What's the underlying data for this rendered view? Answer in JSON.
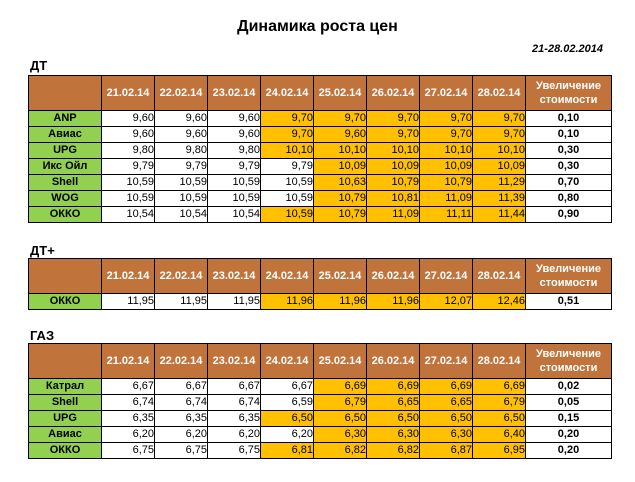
{
  "title": "Динамика роста цен",
  "period": "21-28.02.2014",
  "columns": {
    "dates": [
      "21.02.14",
      "22.02.14",
      "23.02.14",
      "24.02.14",
      "25.02.14",
      "26.02.14",
      "27.02.14",
      "28.02.14"
    ],
    "increase_label": "Увеличение стоимости"
  },
  "highlight_color": "#ffc000",
  "sections": [
    {
      "label": "ДТ",
      "rows": [
        {
          "name": "ANP",
          "values": [
            "9,60",
            "9,60",
            "9,60",
            "9,70",
            "9,70",
            "9,70",
            "9,70",
            "9,70"
          ],
          "highlight": [
            false,
            false,
            false,
            true,
            true,
            true,
            true,
            true
          ],
          "increase": "0,10"
        },
        {
          "name": "Авиас",
          "values": [
            "9,60",
            "9,60",
            "9,60",
            "9,70",
            "9,60",
            "9,70",
            "9,70",
            "9,70"
          ],
          "highlight": [
            false,
            false,
            false,
            true,
            true,
            true,
            true,
            true
          ],
          "increase": "0,10"
        },
        {
          "name": "UPG",
          "values": [
            "9,80",
            "9,80",
            "9,80",
            "10,10",
            "10,10",
            "10,10",
            "10,10",
            "10,10"
          ],
          "highlight": [
            false,
            false,
            false,
            true,
            true,
            true,
            true,
            true
          ],
          "increase": "0,30"
        },
        {
          "name": "Икс Ойл",
          "values": [
            "9,79",
            "9,79",
            "9,79",
            "9,79",
            "10,09",
            "10,09",
            "10,09",
            "10,09"
          ],
          "highlight": [
            false,
            false,
            false,
            false,
            true,
            true,
            true,
            true
          ],
          "increase": "0,30"
        },
        {
          "name": "Shell",
          "values": [
            "10,59",
            "10,59",
            "10,59",
            "10,59",
            "10,63",
            "10,79",
            "10,79",
            "11,29"
          ],
          "highlight": [
            false,
            false,
            false,
            false,
            true,
            true,
            true,
            true
          ],
          "increase": "0,70"
        },
        {
          "name": "WOG",
          "values": [
            "10,59",
            "10,59",
            "10,59",
            "10,59",
            "10,79",
            "10,81",
            "11,09",
            "11,39"
          ],
          "highlight": [
            false,
            false,
            false,
            false,
            true,
            true,
            true,
            true
          ],
          "increase": "0,80"
        },
        {
          "name": "ОККО",
          "values": [
            "10,54",
            "10,54",
            "10,54",
            "10,59",
            "10,79",
            "11,09",
            "11,11",
            "11,44"
          ],
          "highlight": [
            false,
            false,
            false,
            true,
            true,
            true,
            true,
            true
          ],
          "increase": "0,90"
        }
      ]
    },
    {
      "label": "ДТ+",
      "rows": [
        {
          "name": "ОККО",
          "values": [
            "11,95",
            "11,95",
            "11,95",
            "11,96",
            "11,96",
            "11,96",
            "12,07",
            "12,46"
          ],
          "highlight": [
            false,
            false,
            false,
            true,
            true,
            true,
            true,
            true
          ],
          "increase": "0,51"
        }
      ]
    },
    {
      "label": "ГАЗ",
      "rows": [
        {
          "name": "Катрал",
          "values": [
            "6,67",
            "6,67",
            "6,67",
            "6,67",
            "6,69",
            "6,69",
            "6,69",
            "6,69"
          ],
          "highlight": [
            false,
            false,
            false,
            false,
            true,
            true,
            true,
            true
          ],
          "increase": "0,02"
        },
        {
          "name": "Shell",
          "values": [
            "6,74",
            "6,74",
            "6,74",
            "6,59",
            "6,79",
            "6,65",
            "6,65",
            "6,79"
          ],
          "highlight": [
            false,
            false,
            false,
            false,
            true,
            true,
            true,
            true
          ],
          "increase": "0,05"
        },
        {
          "name": "UPG",
          "values": [
            "6,35",
            "6,35",
            "6,35",
            "6,50",
            "6,50",
            "6,50",
            "6,50",
            "6,50"
          ],
          "highlight": [
            false,
            false,
            false,
            true,
            true,
            true,
            true,
            true
          ],
          "increase": "0,15"
        },
        {
          "name": "Авиас",
          "values": [
            "6,20",
            "6,20",
            "6,20",
            "6,20",
            "6,30",
            "6,30",
            "6,30",
            "6,40"
          ],
          "highlight": [
            false,
            false,
            false,
            false,
            true,
            true,
            true,
            true
          ],
          "increase": "0,20"
        },
        {
          "name": "ОККО",
          "values": [
            "6,75",
            "6,75",
            "6,75",
            "6,81",
            "6,82",
            "6,82",
            "6,87",
            "6,95"
          ],
          "highlight": [
            false,
            false,
            false,
            true,
            true,
            true,
            true,
            true
          ],
          "increase": "0,20"
        }
      ]
    }
  ]
}
